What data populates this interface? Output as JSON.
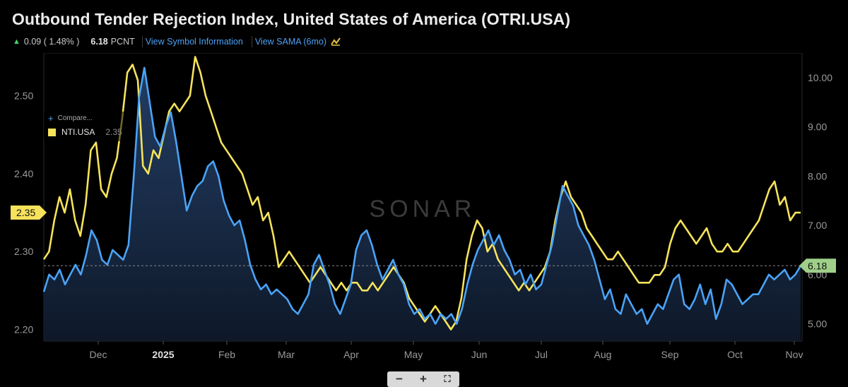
{
  "header": {
    "title": "Outbound Tender Rejection Index, United States of America (OTRI.USA)",
    "change": "0.09 ( 1.48% )",
    "last_value": "6.18",
    "unit": "PCNT",
    "link_symbol_info": "View Symbol Information",
    "link_sama": "View SAMA (6mo)"
  },
  "watermark": "SONAR",
  "compare": {
    "label": "Compare...",
    "legend_name": "NTI.USA",
    "legend_value": "2.35"
  },
  "zoom": {
    "minus": "−",
    "plus": "+",
    "fit": "⛶"
  },
  "colors": {
    "background": "#000000",
    "otri": "#4aa3f7",
    "nti": "#f6e35b",
    "last_badge": "#9fd089"
  },
  "chart_data": {
    "type": "line",
    "x_labels": [
      "Dec",
      "2025",
      "Feb",
      "Mar",
      "Apr",
      "May",
      "Jun",
      "Jul",
      "Aug",
      "Sep",
      "Oct",
      "Nov"
    ],
    "left_axis": {
      "ticks": [
        "2.50",
        "2.40",
        "2.30",
        "2.20"
      ],
      "ylim": [
        2.185,
        2.555
      ]
    },
    "right_axis": {
      "ticks": [
        "10.00",
        "9.00",
        "8.00",
        "7.00",
        "6.00",
        "5.00"
      ],
      "ylim": [
        4.65,
        10.5
      ]
    },
    "last_labels": {
      "left": "2.35",
      "right": "6.18"
    },
    "series": [
      {
        "name": "NTI.USA",
        "axis": "left",
        "color": "#f6e35b",
        "values": [
          2.29,
          2.3,
          2.34,
          2.37,
          2.35,
          2.38,
          2.34,
          2.32,
          2.36,
          2.43,
          2.44,
          2.38,
          2.37,
          2.4,
          2.42,
          2.47,
          2.53,
          2.54,
          2.52,
          2.41,
          2.4,
          2.43,
          2.42,
          2.45,
          2.48,
          2.49,
          2.48,
          2.49,
          2.5,
          2.55,
          2.53,
          2.5,
          2.48,
          2.46,
          2.44,
          2.43,
          2.42,
          2.41,
          2.4,
          2.38,
          2.36,
          2.37,
          2.34,
          2.35,
          2.32,
          2.28,
          2.29,
          2.3,
          2.29,
          2.28,
          2.27,
          2.26,
          2.27,
          2.28,
          2.27,
          2.26,
          2.25,
          2.26,
          2.25,
          2.26,
          2.26,
          2.25,
          2.25,
          2.26,
          2.25,
          2.26,
          2.27,
          2.28,
          2.27,
          2.26,
          2.24,
          2.23,
          2.22,
          2.21,
          2.22,
          2.23,
          2.22,
          2.21,
          2.2,
          2.21,
          2.24,
          2.29,
          2.32,
          2.34,
          2.33,
          2.3,
          2.31,
          2.29,
          2.28,
          2.27,
          2.26,
          2.25,
          2.26,
          2.25,
          2.26,
          2.27,
          2.28,
          2.3,
          2.34,
          2.37,
          2.39,
          2.37,
          2.36,
          2.35,
          2.33,
          2.32,
          2.31,
          2.3,
          2.29,
          2.29,
          2.3,
          2.29,
          2.28,
          2.27,
          2.26,
          2.26,
          2.26,
          2.27,
          2.27,
          2.28,
          2.31,
          2.33,
          2.34,
          2.33,
          2.32,
          2.31,
          2.32,
          2.33,
          2.31,
          2.3,
          2.3,
          2.31,
          2.3,
          2.3,
          2.31,
          2.32,
          2.33,
          2.34,
          2.36,
          2.38,
          2.39,
          2.36,
          2.37,
          2.34,
          2.35,
          2.35
        ]
      },
      {
        "name": "OTRI.USA",
        "axis": "right",
        "color": "#4aa3f7",
        "values": [
          5.65,
          6.0,
          5.9,
          6.1,
          5.8,
          6.0,
          6.2,
          6.0,
          6.4,
          6.9,
          6.7,
          6.3,
          6.2,
          6.5,
          6.4,
          6.3,
          6.6,
          8.0,
          9.6,
          10.2,
          9.5,
          8.8,
          8.6,
          9.0,
          9.3,
          8.7,
          8.0,
          7.3,
          7.6,
          7.8,
          7.9,
          8.2,
          8.3,
          8.0,
          7.5,
          7.2,
          7.0,
          7.1,
          6.7,
          6.2,
          5.9,
          5.7,
          5.8,
          5.6,
          5.7,
          5.6,
          5.5,
          5.3,
          5.2,
          5.4,
          5.6,
          6.2,
          6.4,
          6.1,
          5.8,
          5.4,
          5.2,
          5.5,
          5.8,
          6.5,
          6.8,
          6.9,
          6.6,
          6.2,
          5.9,
          6.1,
          6.3,
          6.0,
          5.8,
          5.4,
          5.2,
          5.3,
          5.1,
          5.2,
          5.0,
          5.2,
          5.1,
          5.2,
          5.0,
          5.3,
          5.8,
          6.2,
          6.5,
          6.7,
          6.9,
          6.6,
          6.8,
          6.5,
          6.3,
          6.0,
          6.1,
          5.8,
          6.0,
          5.7,
          5.8,
          6.2,
          6.6,
          7.2,
          7.8,
          7.6,
          7.4,
          7.0,
          6.8,
          6.6,
          6.3,
          5.9,
          5.5,
          5.7,
          5.3,
          5.2,
          5.6,
          5.4,
          5.2,
          5.3,
          5.0,
          5.2,
          5.4,
          5.3,
          5.6,
          5.9,
          6.0,
          5.4,
          5.3,
          5.5,
          5.8,
          5.4,
          5.7,
          5.1,
          5.4,
          5.9,
          5.8,
          5.6,
          5.4,
          5.5,
          5.6,
          5.6,
          5.8,
          6.0,
          5.9,
          6.0,
          6.1,
          5.9,
          6.0,
          6.18
        ]
      }
    ]
  }
}
